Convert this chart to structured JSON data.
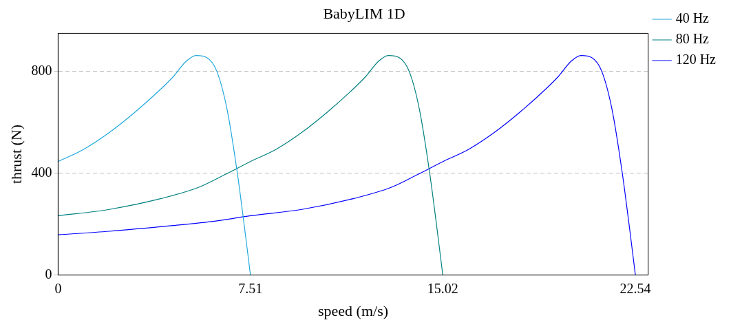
{
  "chart_data": {
    "type": "line",
    "title": "BabyLIM 1D",
    "xlabel": "speed (m/s)",
    "ylabel": "thrust (N)",
    "xlim": [
      0,
      23.04
    ],
    "ylim": [
      0,
      950
    ],
    "xticks": [
      0,
      7.51,
      15.02,
      22.54
    ],
    "yticks": [
      0,
      400,
      800
    ],
    "grid": "y",
    "legend": "top right",
    "marker": "none",
    "line_style": "solid",
    "series": [
      {
        "name": "40 Hz",
        "color": "#1fa8dc",
        "x": [
          0,
          1,
          2,
          3,
          4,
          4.5,
          5,
          5.39,
          5.8,
          6.2,
          6.6,
          7,
          7.3,
          7.51
        ],
        "values": [
          446,
          494,
          560,
          640,
          730,
          780,
          840,
          863,
          855,
          800,
          650,
          400,
          170,
          0
        ]
      },
      {
        "name": "80 Hz",
        "color": "#008080",
        "x": [
          0,
          2,
          4,
          5.5,
          6.52,
          7.51,
          8.51,
          9.51,
          10.51,
          11.51,
          12.01,
          12.51,
          12.9,
          13.31,
          13.71,
          14.11,
          14.51,
          14.81,
          15.02
        ],
        "values": [
          233,
          258,
          300,
          345,
          395,
          446,
          494,
          560,
          640,
          730,
          780,
          840,
          863,
          855,
          800,
          650,
          400,
          170,
          0
        ]
      },
      {
        "name": "120 Hz",
        "color": "#0000ff",
        "x": [
          0,
          2,
          4,
          6,
          7.52,
          9.52,
          11.52,
          13.02,
          14.04,
          15.03,
          16.03,
          17.03,
          18.03,
          19.03,
          19.53,
          20.03,
          20.42,
          20.83,
          21.23,
          21.63,
          22.03,
          22.33,
          22.54
        ],
        "values": [
          158,
          172,
          190,
          210,
          233,
          258,
          300,
          345,
          395,
          446,
          494,
          560,
          640,
          730,
          780,
          840,
          863,
          855,
          800,
          650,
          400,
          170,
          0
        ]
      }
    ]
  }
}
